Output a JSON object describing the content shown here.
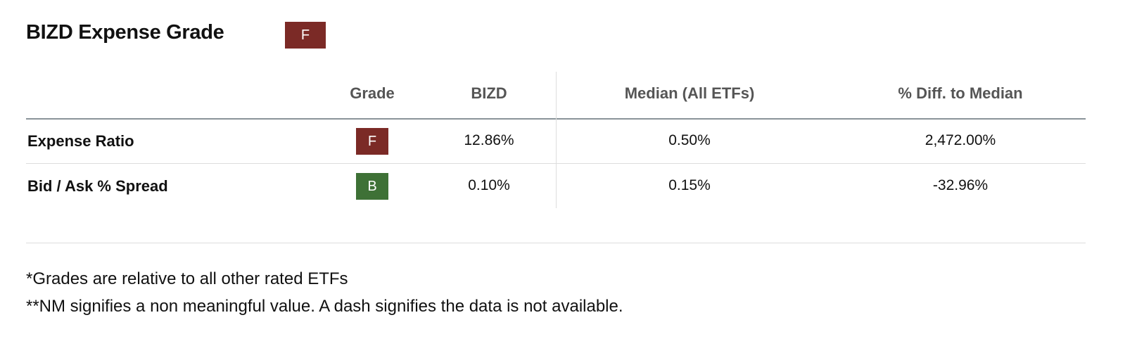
{
  "header": {
    "title": "BIZD Expense Grade",
    "grade": "F"
  },
  "table": {
    "columns": [
      "Grade",
      "BIZD",
      "Median (All ETFs)",
      "% Diff. to Median"
    ],
    "rows": [
      [
        "Expense Ratio",
        "F",
        "12.86%",
        "0.50%",
        "2,472.00%"
      ],
      [
        "Bid / Ask % Spread",
        "B",
        "0.10%",
        "0.15%",
        "-32.96%"
      ]
    ]
  },
  "footnotes": [
    "*Grades are relative to all other rated ETFs",
    "**NM signifies a non meaningful value. A dash signifies the data is not available."
  ]
}
